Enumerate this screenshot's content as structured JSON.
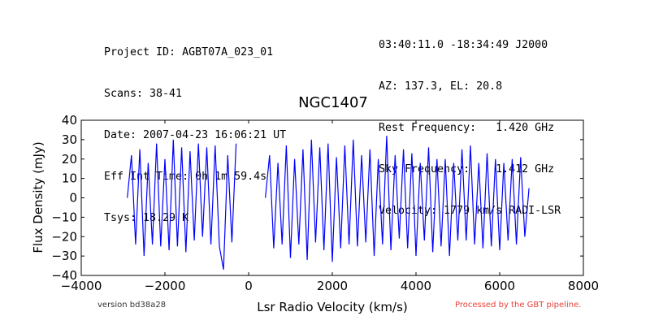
{
  "header": {
    "left": [
      "Project ID: AGBT07A_023_01",
      "Scans: 38-41",
      "Date: 2007-04-23 16:06:21 UT",
      "Eff Int Time: 0h 1m 59.4s",
      "Tsys: 18.29 K"
    ],
    "right": [
      "03:40:11.0 -18:34:49 J2000",
      "AZ: 137.3, EL: 20.8",
      "Rest Frequency:   1.420 GHz",
      "Sky Frequency:    1.412 GHz",
      "Velocity: 1779 km/s RADI-LSR"
    ]
  },
  "footer": {
    "version": "version bd38a28",
    "processed": "Processed by the GBT pipeline."
  },
  "colors": {
    "series": "#0000ff",
    "processed": "#e8413a"
  },
  "chart_data": {
    "type": "line",
    "title": "NGC1407",
    "xlabel": "Lsr Radio Velocity (km/s)",
    "ylabel": "Flux Density (mJy)",
    "xlim": [
      -4000,
      8000
    ],
    "ylim": [
      -40,
      40
    ],
    "xticks": [
      -4000,
      -2000,
      0,
      2000,
      4000,
      6000,
      8000
    ],
    "yticks": [
      -40,
      -30,
      -20,
      -10,
      0,
      10,
      20,
      30,
      40
    ],
    "grid": false,
    "series": [
      {
        "segments": [
          {
            "x": [
              -2900,
              -2800,
              -2700,
              -2600,
              -2500,
              -2400,
              -2300,
              -2200,
              -2100,
              -2000,
              -1900,
              -1800,
              -1700,
              -1600,
              -1500,
              -1400,
              -1300,
              -1200,
              -1100,
              -1000,
              -900,
              -800,
              -700,
              -600,
              -500,
              -400,
              -300
            ],
            "y": [
              0,
              22,
              -24,
              25,
              -30,
              18,
              -24,
              28,
              -25,
              20,
              -27,
              30,
              -25,
              26,
              -28,
              24,
              -22,
              28,
              -20,
              26,
              -24,
              27,
              -25,
              -37,
              22,
              -23,
              28
            ]
          },
          {
            "x": [
              400,
              500,
              600,
              700,
              800,
              900,
              1000,
              1100,
              1200,
              1300,
              1400,
              1500,
              1600,
              1700,
              1800,
              1900,
              2000,
              2100,
              2200,
              2300,
              2400,
              2500,
              2600,
              2700,
              2800,
              2900,
              3000,
              3100,
              3200,
              3300,
              3400,
              3500,
              3600,
              3700,
              3800,
              3900,
              4000,
              4100,
              4200,
              4300,
              4400,
              4500,
              4600,
              4700,
              4800,
              4900,
              5000,
              5100,
              5200,
              5300,
              5400,
              5500,
              5600,
              5700,
              5800,
              5900,
              6000,
              6100,
              6200,
              6300,
              6400,
              6500,
              6600,
              6700
            ],
            "y": [
              0,
              22,
              -26,
              18,
              -24,
              27,
              -31,
              20,
              -24,
              25,
              -32,
              30,
              -23,
              26,
              -27,
              28,
              -33,
              21,
              -26,
              27,
              -24,
              30,
              -25,
              22,
              -23,
              25,
              -30,
              20,
              -24,
              32,
              -27,
              22,
              -21,
              25,
              -26,
              23,
              -30,
              18,
              -22,
              26,
              -28,
              20,
              -25,
              20,
              -30,
              18,
              -22,
              25,
              -22,
              27,
              -24,
              18,
              -26,
              23,
              -25,
              20,
              -27,
              18,
              -22,
              20,
              -24,
              21,
              -20,
              5
            ]
          }
        ]
      }
    ]
  }
}
